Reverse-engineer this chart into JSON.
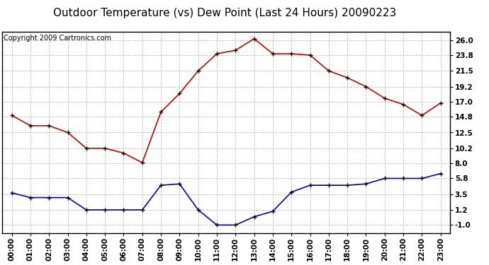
{
  "title": "Outdoor Temperature (vs) Dew Point (Last 24 Hours) 20090223",
  "copyright": "Copyright 2009 Cartronics.com",
  "x_labels": [
    "00:00",
    "01:00",
    "02:00",
    "03:00",
    "04:00",
    "05:00",
    "06:00",
    "07:00",
    "08:00",
    "09:00",
    "10:00",
    "11:00",
    "12:00",
    "13:00",
    "14:00",
    "15:00",
    "16:00",
    "17:00",
    "18:00",
    "19:00",
    "20:00",
    "21:00",
    "22:00",
    "23:00"
  ],
  "temp_data": [
    15.0,
    13.5,
    13.5,
    12.5,
    10.2,
    10.2,
    9.5,
    8.1,
    15.5,
    18.2,
    21.5,
    24.0,
    24.5,
    26.2,
    24.0,
    24.0,
    23.8,
    21.5,
    20.5,
    19.2,
    17.5,
    16.6,
    15.0,
    16.8
  ],
  "dew_data": [
    3.7,
    3.0,
    3.0,
    3.0,
    1.2,
    1.2,
    1.2,
    1.2,
    4.8,
    5.0,
    1.2,
    -1.0,
    -1.0,
    0.2,
    1.0,
    3.8,
    4.8,
    4.8,
    4.8,
    5.0,
    5.8,
    5.8,
    5.8,
    6.5
  ],
  "temp_color": "#cc0000",
  "dew_color": "#0000cc",
  "bg_color": "#ffffff",
  "grid_color": "#aaaaaa",
  "y_ticks": [
    -1.0,
    1.2,
    3.5,
    5.8,
    8.0,
    10.2,
    12.5,
    14.8,
    17.0,
    19.2,
    21.5,
    23.8,
    26.0
  ],
  "ylim": [
    -2.2,
    27.2
  ],
  "title_fontsize": 11,
  "axis_fontsize": 7.5,
  "copyright_fontsize": 7
}
